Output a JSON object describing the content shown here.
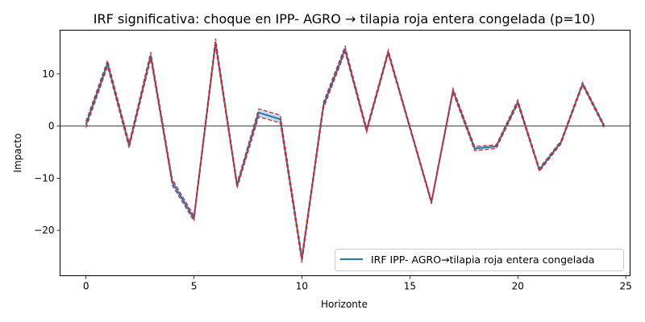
{
  "chart_data": {
    "type": "line",
    "title": "IRF significativa: choque en IPP- AGRO → tilapia roja entera congelada (p=10)",
    "xlabel": "Horizonte",
    "ylabel": "Impacto",
    "xlim": [
      -1.2,
      25.2
    ],
    "ylim": [
      -28.7,
      18.4
    ],
    "xticks": [
      0,
      5,
      10,
      15,
      20,
      25
    ],
    "yticks": [
      -20,
      -10,
      0,
      10
    ],
    "grid": false,
    "zero_line": true,
    "legend_position": "lower-right",
    "colors": {
      "irf": "#1f77b4",
      "band": "#d62728",
      "band_fill": "#1f77b4"
    },
    "x": [
      0,
      1,
      2,
      3,
      4,
      5,
      6,
      7,
      8,
      9,
      10,
      11,
      12,
      13,
      14,
      15,
      16,
      17,
      18,
      19,
      20,
      21,
      22,
      23,
      24
    ],
    "series": [
      {
        "name": "IRF IPP- AGRO→tilapia roja entera congelada",
        "role": "irf",
        "values": [
          0.3,
          12.0,
          -3.7,
          13.5,
          -10.8,
          -17.7,
          16.0,
          -11.4,
          2.6,
          1.3,
          -25.5,
          4.0,
          14.7,
          -0.8,
          14.2,
          -0.2,
          -14.6,
          6.8,
          -4.3,
          -3.9,
          4.6,
          -8.4,
          -3.1,
          8.1,
          0.0
        ]
      },
      {
        "role": "upper",
        "values": [
          0.9,
          12.6,
          -3.2,
          14.2,
          -10.2,
          -17.2,
          16.8,
          -10.9,
          3.3,
          2.1,
          -24.9,
          4.6,
          15.3,
          -0.4,
          14.6,
          0.1,
          -14.3,
          7.2,
          -3.9,
          -3.6,
          5.0,
          -8.1,
          -2.8,
          8.4,
          0.3
        ]
      },
      {
        "role": "lower",
        "values": [
          -0.3,
          11.4,
          -4.2,
          12.9,
          -11.4,
          -18.2,
          15.4,
          -11.9,
          1.8,
          0.6,
          -26.2,
          3.4,
          14.2,
          -1.2,
          13.8,
          -0.5,
          -14.9,
          6.4,
          -4.7,
          -4.3,
          4.2,
          -8.7,
          -3.4,
          7.8,
          -0.3
        ]
      }
    ]
  }
}
